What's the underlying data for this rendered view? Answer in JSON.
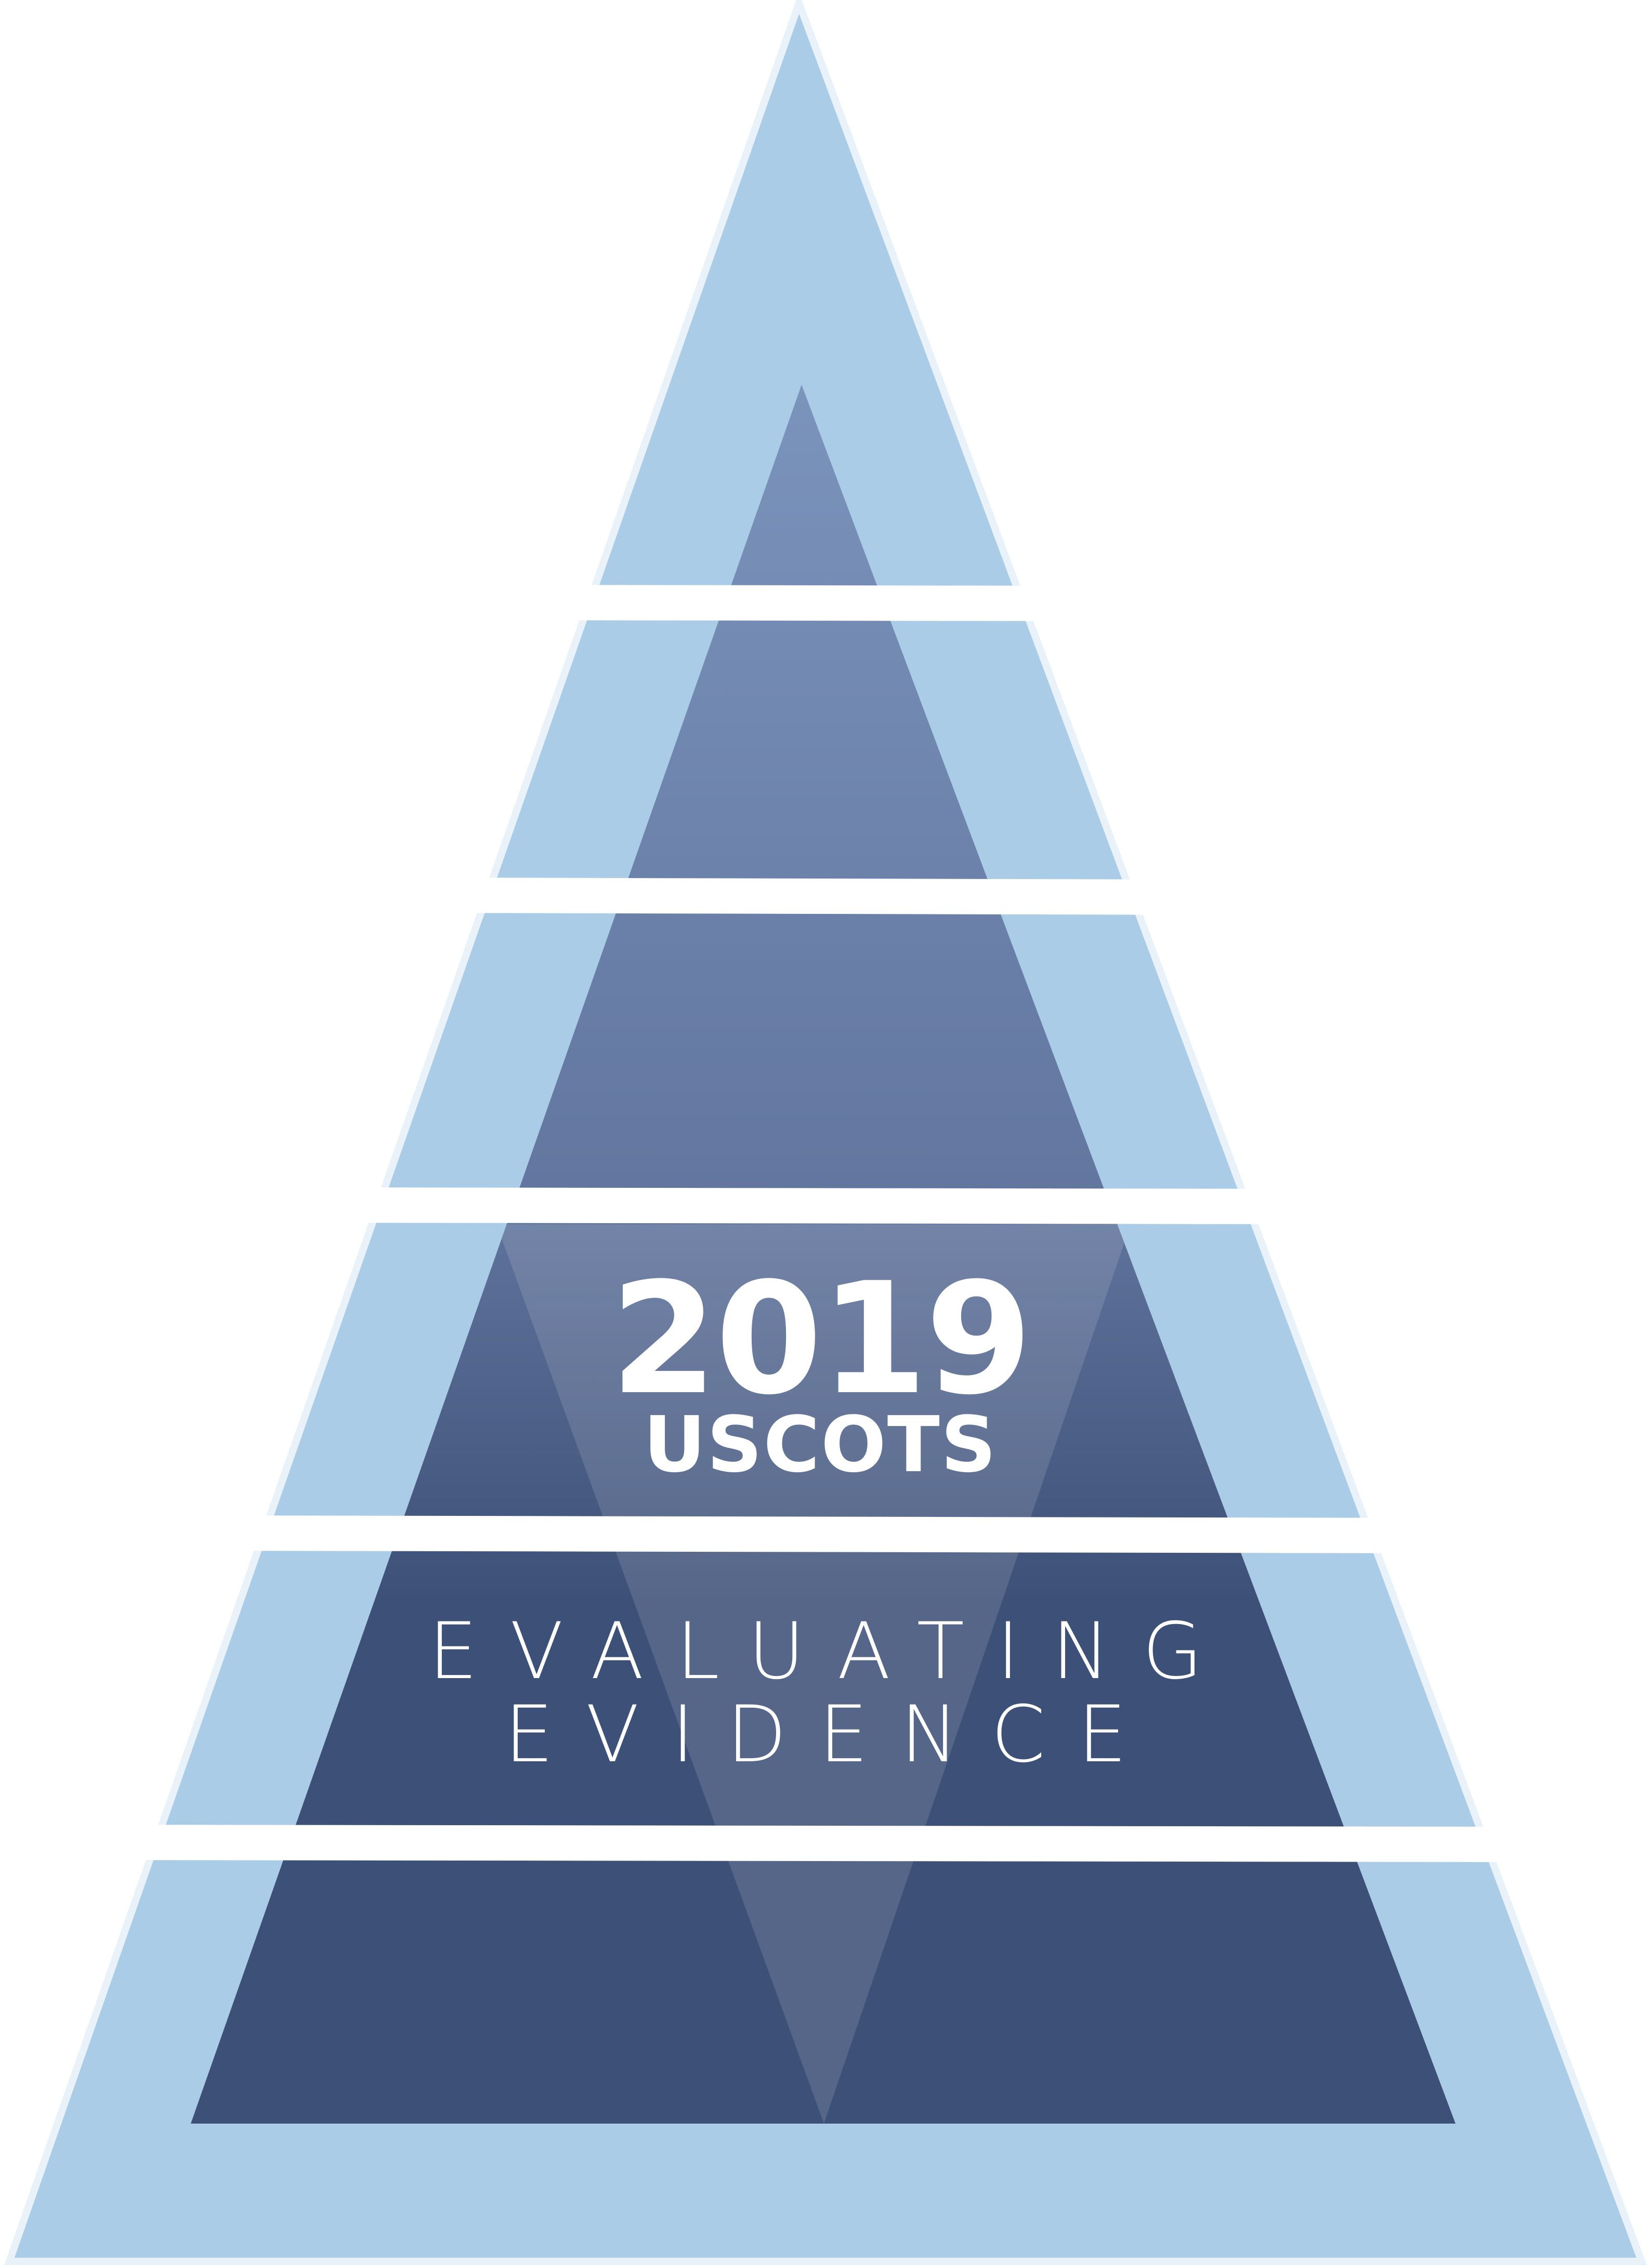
{
  "logo": {
    "year": "2019",
    "organization": "USCOTS",
    "theme_line1": "EVALUATING",
    "theme_line2": "EVIDENCE"
  },
  "colors": {
    "outer_band": "#abcce6",
    "outer_edge": "#e9f1f9",
    "inner_top": "#7b94bc",
    "inner_mid": "#6377a0",
    "inner_bottom": "#3d5078",
    "inverted_overlay": "#ffffff",
    "text": "#ffffff"
  }
}
